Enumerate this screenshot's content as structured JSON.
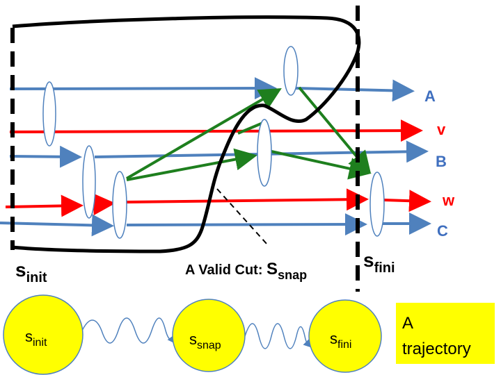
{
  "diagram": {
    "colors": {
      "blue": "#4F81BD",
      "red": "#FF0000",
      "green": "#1E7F1E",
      "black": "#000000",
      "circle_fill": "#FFFF00",
      "box_fill": "#FFFF00",
      "label_blue": "#3F6FBF",
      "label_red": "#FF0000"
    },
    "processes": [
      {
        "name": "A",
        "color": "blue"
      },
      {
        "name": "v",
        "color": "red"
      },
      {
        "name": "B",
        "color": "blue"
      },
      {
        "name": "w",
        "color": "red"
      },
      {
        "name": "C",
        "color": "blue"
      }
    ],
    "state_labels": {
      "init": {
        "main": "s",
        "sub": "init"
      },
      "fini": {
        "main": "s",
        "sub": "fini"
      },
      "cut": {
        "prefix": "A Valid Cut: ",
        "main": "S",
        "sub": "snap"
      }
    },
    "trajectory": {
      "states": [
        {
          "main": "s",
          "sub": "init"
        },
        {
          "main": "s",
          "sub": "snap"
        },
        {
          "main": "s",
          "sub": "fini"
        }
      ],
      "box_line1": "A",
      "box_line2": "trajectory"
    }
  }
}
